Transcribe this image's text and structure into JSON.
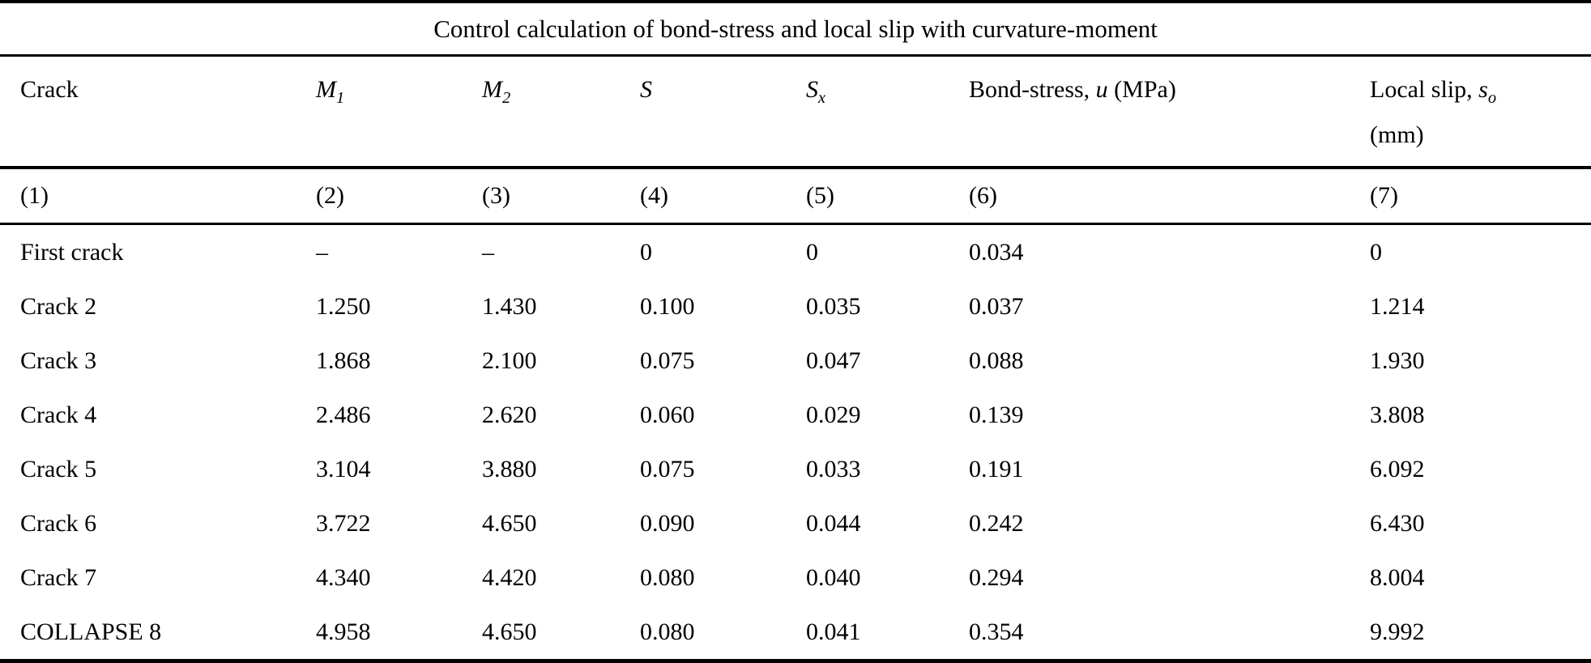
{
  "table": {
    "title": "Control calculation of bond-stress and local slip with curvature-moment",
    "columns": [
      {
        "num": "(1)",
        "label": "Crack"
      },
      {
        "num": "(2)",
        "base": "M",
        "sub": "1"
      },
      {
        "num": "(3)",
        "base": "M",
        "sub": "2"
      },
      {
        "num": "(4)",
        "base": "S",
        "sub": ""
      },
      {
        "num": "(5)",
        "base": "S",
        "sub": "x"
      },
      {
        "num": "(6)",
        "prefix": "Bond-stress, ",
        "var": "u",
        "suffix": " (MPa)"
      },
      {
        "num": "(7)",
        "prefix": "Local slip, ",
        "var": "s",
        "var_sub": "o",
        "line2": "(mm)"
      }
    ],
    "rows": [
      {
        "crack": "First crack",
        "m1": "–",
        "m2": "–",
        "s": "0",
        "sx": "0",
        "u": "0.034",
        "so": "0"
      },
      {
        "crack": "Crack 2",
        "m1": "1.250",
        "m2": "1.430",
        "s": "0.100",
        "sx": "0.035",
        "u": "0.037",
        "so": "1.214"
      },
      {
        "crack": "Crack 3",
        "m1": "1.868",
        "m2": "2.100",
        "s": "0.075",
        "sx": "0.047",
        "u": "0.088",
        "so": "1.930"
      },
      {
        "crack": "Crack 4",
        "m1": "2.486",
        "m2": "2.620",
        "s": "0.060",
        "sx": "0.029",
        "u": "0.139",
        "so": "3.808"
      },
      {
        "crack": "Crack 5",
        "m1": "3.104",
        "m2": "3.880",
        "s": "0.075",
        "sx": "0.033",
        "u": "0.191",
        "so": "6.092"
      },
      {
        "crack": "Crack 6",
        "m1": "3.722",
        "m2": "4.650",
        "s": "0.090",
        "sx": "0.044",
        "u": "0.242",
        "so": "6.430"
      },
      {
        "crack": "Crack 7",
        "m1": "4.340",
        "m2": "4.420",
        "s": "0.080",
        "sx": "0.040",
        "u": "0.294",
        "so": "8.004"
      },
      {
        "crack": "COLLAPSE 8",
        "m1": "4.958",
        "m2": "4.650",
        "s": "0.080",
        "sx": "0.041",
        "u": "0.354",
        "so": "9.992"
      }
    ],
    "colors": {
      "text": "#000000",
      "background": "#ffffff",
      "rule": "#000000"
    }
  }
}
